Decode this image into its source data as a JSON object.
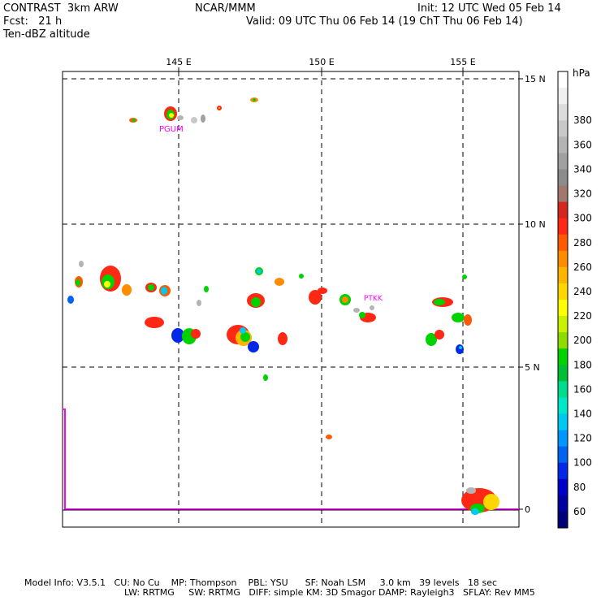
{
  "header": {
    "left_line1": "CONTRAST  3km ARW",
    "left_line2": "Fcst:   21 h",
    "left_line3": "Ten-dBZ altitude",
    "center": "NCAR/MMM",
    "right_line1": "Init: 12 UTC Wed 05 Feb 14",
    "right_line2": "Valid: 09 UTC Thu 06 Feb 14 (19 ChT Thu 06 Feb 14)"
  },
  "map": {
    "lon_labels": [
      "145 E",
      "150 E",
      "155 E"
    ],
    "lat_labels": [
      "15 N",
      "10 N",
      "5 N",
      "0"
    ],
    "stations": [
      "PGUM",
      "PTKK"
    ]
  },
  "colorbar": {
    "unit": "hPa",
    "labels": [
      "380",
      "360",
      "340",
      "320",
      "300",
      "280",
      "260",
      "240",
      "220",
      "200",
      "180",
      "160",
      "140",
      "120",
      "100",
      "80",
      "60"
    ],
    "colors": [
      "#ffffff",
      "#f0f0f0",
      "#dcdcdc",
      "#c8c8c8",
      "#b4b4b4",
      "#a0a0a0",
      "#8c8c8c",
      "#a0786e",
      "#d2281e",
      "#ff2814",
      "#ff5a00",
      "#ff8c00",
      "#ffb400",
      "#ffd700",
      "#ffff00",
      "#c8f000",
      "#8cdc00",
      "#00d200",
      "#00be32",
      "#00dc8c",
      "#00e6c8",
      "#00c8f0",
      "#0096ff",
      "#0064f0",
      "#0028e6",
      "#0000c8",
      "#0000a0",
      "#000078"
    ]
  },
  "footer": {
    "line1": "Model Info: V3.5.1   CU: No Cu    MP: Thompson    PBL: YSU      SF: Noah LSM     3.0 km   39 levels   18 sec",
    "line2": "LW: RRTMG     SW: RRTMG   DIFF: simple KM: 3D Smagor DAMP: Rayleigh3   SFLAY: Rev MM5"
  }
}
